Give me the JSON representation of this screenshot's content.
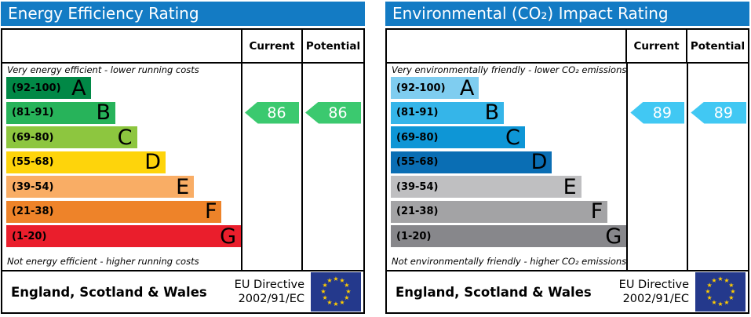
{
  "chart_data": [
    {
      "type": "bar",
      "title": "Energy Efficiency Rating",
      "header_color": "#137bc4",
      "columns": {
        "current": "Current",
        "potential": "Potential"
      },
      "top_note": "Very energy efficient - lower running costs",
      "bottom_note": "Not energy efficient - higher running costs",
      "bands": [
        {
          "range": "(92-100)",
          "letter": "A",
          "color": "#018846",
          "width_pct": 36
        },
        {
          "range": "(81-91)",
          "letter": "B",
          "color": "#27b35a",
          "width_pct": 46.5
        },
        {
          "range": "(69-80)",
          "letter": "C",
          "color": "#8dc63f",
          "width_pct": 55.7
        },
        {
          "range": "(55-68)",
          "letter": "D",
          "color": "#fed40b",
          "width_pct": 67.9
        },
        {
          "range": "(39-54)",
          "letter": "E",
          "color": "#f9ad65",
          "width_pct": 80
        },
        {
          "range": "(21-38)",
          "letter": "F",
          "color": "#ee8329",
          "width_pct": 91.8
        },
        {
          "range": "(1-20)",
          "letter": "G",
          "color": "#ea1e2c",
          "width_pct": 100
        }
      ],
      "current": {
        "value": "86",
        "band": "B",
        "arrow_color": "#3bc96f"
      },
      "potential": {
        "value": "86",
        "band": "B",
        "arrow_color": "#3bc96f"
      },
      "footer": {
        "region": "England, Scotland & Wales",
        "directive_line1": "EU Directive",
        "directive_line2": "2002/91/EC",
        "flag_color": "#24398c",
        "star_color": "#ffcc00"
      }
    },
    {
      "type": "bar",
      "title": "Environmental (CO₂) Impact Rating",
      "header_color": "#137bc4",
      "columns": {
        "current": "Current",
        "potential": "Potential"
      },
      "top_note": "Very environmentally friendly - lower CO₂ emissions",
      "bottom_note": "Not environmentally friendly - higher CO₂ emissions",
      "bands": [
        {
          "range": "(92-100)",
          "letter": "A",
          "color": "#7fcdf0",
          "width_pct": 37.4
        },
        {
          "range": "(81-91)",
          "letter": "B",
          "color": "#35b5e9",
          "width_pct": 48
        },
        {
          "range": "(69-80)",
          "letter": "C",
          "color": "#0e96d6",
          "width_pct": 56.9
        },
        {
          "range": "(55-68)",
          "letter": "D",
          "color": "#0a6eb4",
          "width_pct": 68.4
        },
        {
          "range": "(39-54)",
          "letter": "E",
          "color": "#bfbfc1",
          "width_pct": 80.8
        },
        {
          "range": "(21-38)",
          "letter": "F",
          "color": "#a3a3a5",
          "width_pct": 92
        },
        {
          "range": "(1-20)",
          "letter": "G",
          "color": "#87878b",
          "width_pct": 100
        }
      ],
      "current": {
        "value": "89",
        "band": "B",
        "arrow_color": "#41c8f3"
      },
      "potential": {
        "value": "89",
        "band": "B",
        "arrow_color": "#41c8f3"
      },
      "footer": {
        "region": "England, Scotland & Wales",
        "directive_line1": "EU Directive",
        "directive_line2": "2002/91/EC",
        "flag_color": "#24398c",
        "star_color": "#ffcc00"
      }
    }
  ]
}
